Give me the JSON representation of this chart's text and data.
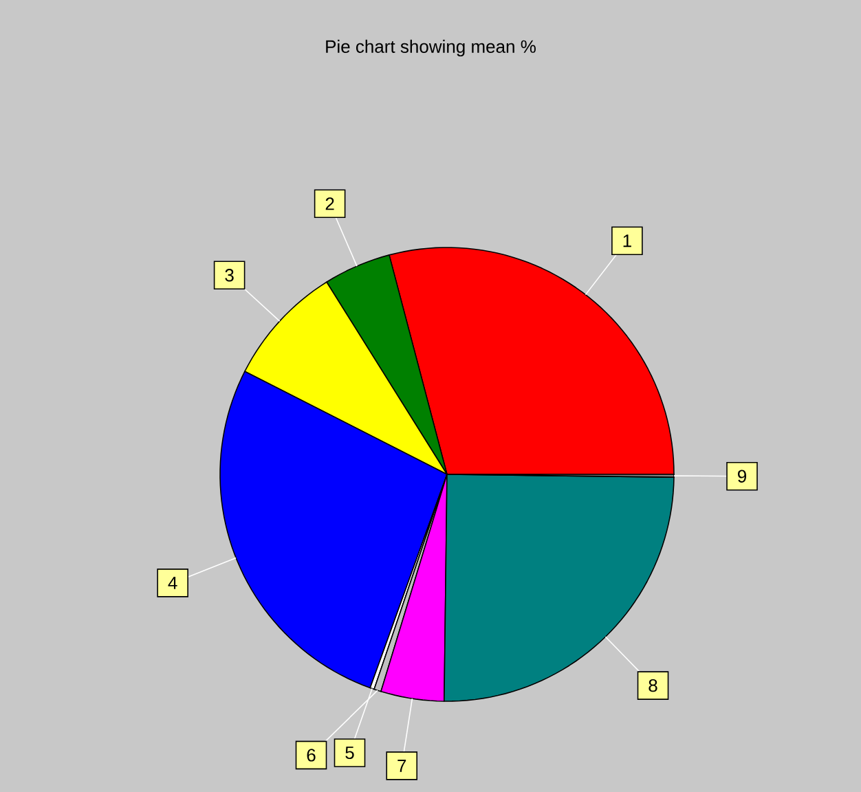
{
  "chart_data": {
    "type": "pie",
    "title": "Pie chart showing mean %",
    "categories": [
      "1",
      "2",
      "3",
      "4",
      "5",
      "6",
      "7",
      "8",
      "9"
    ],
    "values": [
      29.1,
      4.8,
      8.6,
      27.0,
      0.3,
      0.5,
      4.5,
      25.0,
      0.2
    ],
    "colors": [
      "#ff0000",
      "#008000",
      "#ffff00",
      "#0000ff",
      "#ffffff",
      "#c0c0c0",
      "#ff00ff",
      "#008080",
      "#808080"
    ]
  }
}
